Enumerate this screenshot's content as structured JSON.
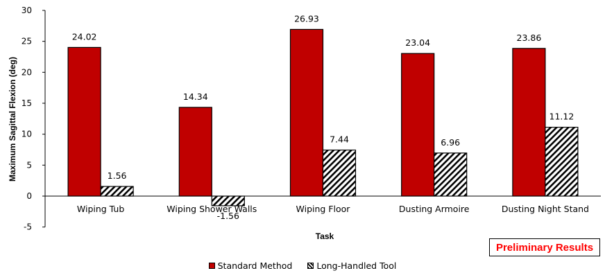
{
  "chart_data": {
    "type": "bar",
    "categories": [
      "Wiping Tub",
      "Wiping Shower Walls",
      "Wiping Floor",
      "Dusting Armoire",
      "Dusting Night Stand"
    ],
    "series": [
      {
        "name": "Standard Method",
        "values": [
          24.02,
          14.34,
          26.93,
          23.04,
          23.86
        ],
        "labels": [
          "24.02",
          "14.34",
          "26.93",
          "23.04",
          "23.86"
        ],
        "color": "#c00000",
        "fill": "solid"
      },
      {
        "name": "Long-Handled Tool",
        "values": [
          1.56,
          -1.56,
          7.44,
          6.96,
          11.12
        ],
        "labels": [
          "1.56",
          "-1.56",
          "7.44",
          "6.96",
          "11.12"
        ],
        "color": "#000000",
        "fill": "hatched"
      }
    ],
    "xlabel": "Task",
    "ylabel": "Maximum Sagittal Flexion (deg)",
    "ylim": [
      -5,
      30
    ],
    "yticks": [
      "-5",
      "0",
      "5",
      "10",
      "15",
      "20",
      "25",
      "30"
    ],
    "grid": false,
    "legend_position": "bottom"
  },
  "annotation": {
    "text": "Preliminary Results",
    "color": "#ff0000"
  }
}
